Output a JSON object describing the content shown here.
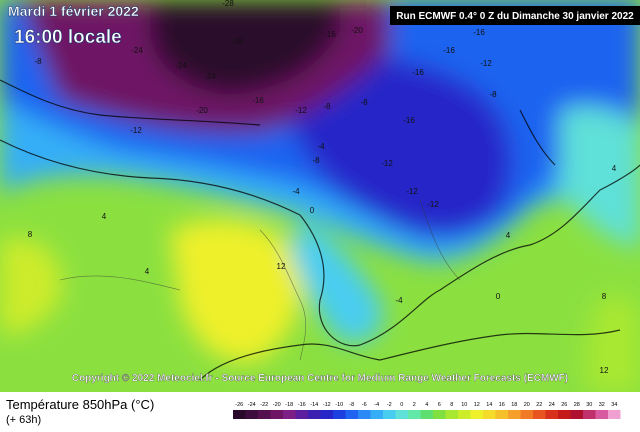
{
  "header": {
    "date": "Mardi 1 février 2022",
    "time": "16:00 locale",
    "run": "Run ECMWF 0.4° 0 Z du Dimanche 30 janvier 2022"
  },
  "map": {
    "copyright": "Copyright © 2022 Meteociel.fr - Source European Centre for Medium Range Weather Forecasts (ECMWF)",
    "contour_labels": [
      "-28",
      "-28",
      "-20",
      "-16",
      "-16",
      "-24",
      "-8",
      "-24",
      "-24",
      "-16",
      "-12",
      "-16",
      "-8",
      "-20",
      "-16",
      "-12",
      "-8",
      "-8",
      "-16",
      "-12",
      "-12",
      "-4",
      "-8",
      "-12",
      "-12",
      "-4",
      "0",
      "4",
      "4",
      "12",
      "0",
      "4",
      "8",
      "4",
      "-4",
      "8",
      "12"
    ]
  },
  "footer": {
    "title": "Température 850hPa (°C)",
    "lead": "(+ 63h)"
  },
  "colorbar": {
    "ticks": [
      "-26",
      "-24",
      "-22",
      "-20",
      "-18",
      "-16",
      "-14",
      "-12",
      "-10",
      "-8",
      "-6",
      "-4",
      "-2",
      "0",
      "2",
      "4",
      "6",
      "8",
      "10",
      "12",
      "14",
      "16",
      "18",
      "20",
      "22",
      "24",
      "26",
      "28",
      "30",
      "32",
      "34"
    ],
    "colors": [
      "#2a0a2a",
      "#3d0d3d",
      "#55104f",
      "#6e1565",
      "#7d1f85",
      "#5a1e9e",
      "#3a1fb0",
      "#2525c8",
      "#1e3fe0",
      "#1f63f0",
      "#2b8af5",
      "#35aef7",
      "#48cdf0",
      "#5fe0d8",
      "#62e8a8",
      "#5ee070",
      "#7fe040",
      "#a8e830",
      "#cdec2a",
      "#eef02a",
      "#f5dc2a",
      "#f5c02a",
      "#f5a02a",
      "#f07a25",
      "#e85520",
      "#d8301a",
      "#c41a1a",
      "#b01030",
      "#c0306a",
      "#d85aa0",
      "#f0a0d0"
    ]
  }
}
